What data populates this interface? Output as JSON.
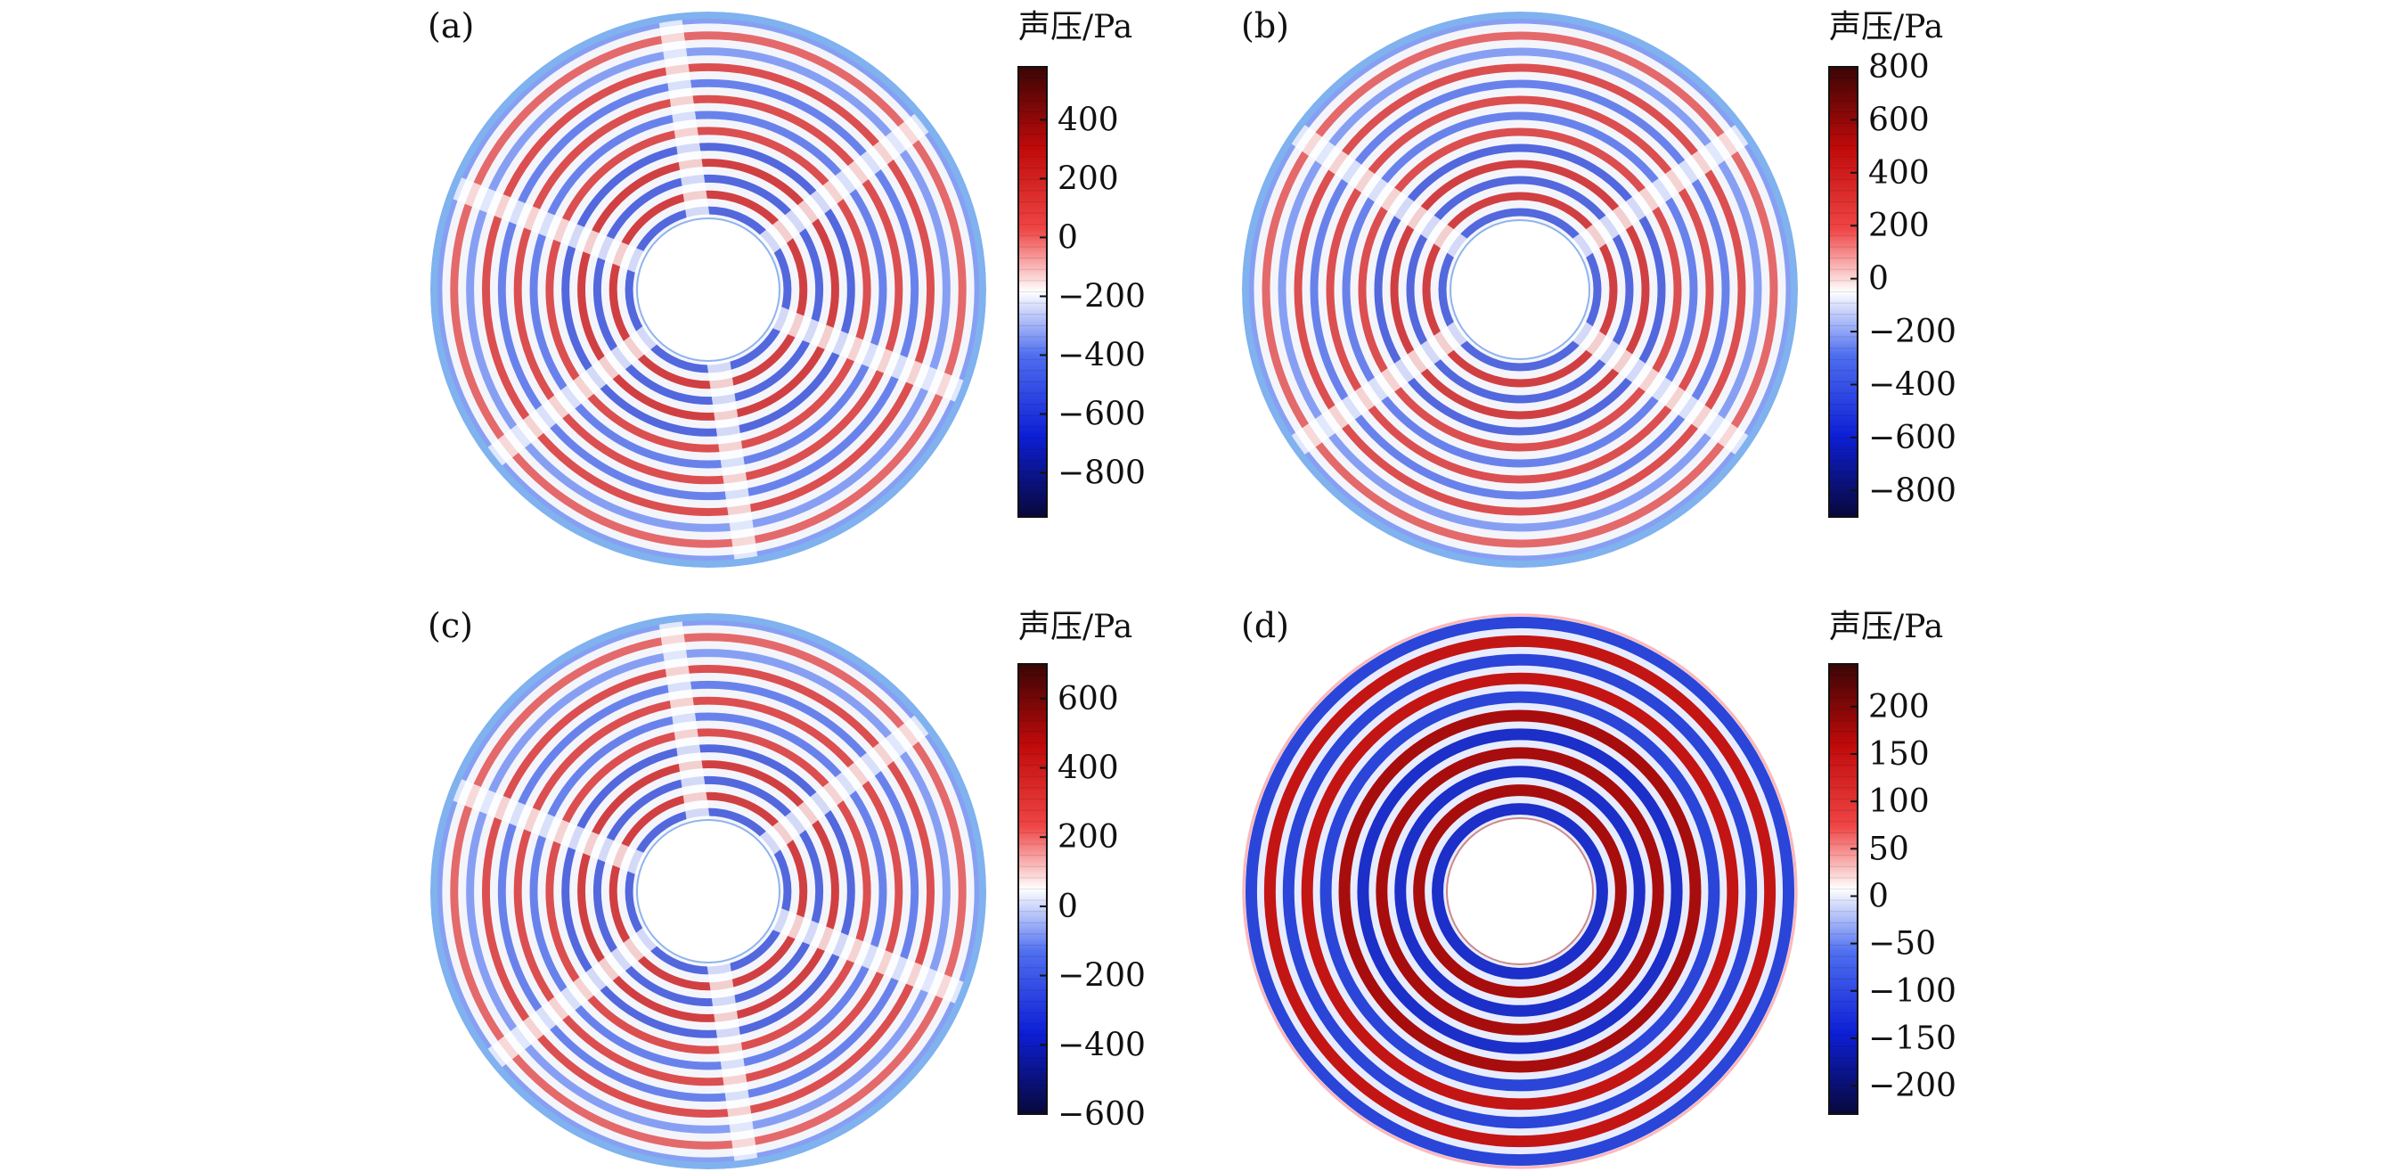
{
  "figure": {
    "panels": [
      {
        "label": "(a)",
        "colorbar_title": "声压/Pa",
        "pattern": "rings-with-six-nodal-lines",
        "ticks": [
          "400",
          "200",
          "0",
          "−200",
          "−400",
          "−600",
          "−800"
        ]
      },
      {
        "label": "(b)",
        "colorbar_title": "声压/Pa",
        "pattern": "rings-with-four-nodal-lines",
        "ticks": [
          "800",
          "600",
          "400",
          "200",
          "0",
          "−200",
          "−400",
          "−600",
          "−800"
        ]
      },
      {
        "label": "(c)",
        "colorbar_title": "声压/Pa",
        "pattern": "rings-with-six-nodal-lines",
        "ticks": [
          "600",
          "400",
          "200",
          "0",
          "−200",
          "−400",
          "−600"
        ]
      },
      {
        "label": "(d)",
        "colorbar_title": "声压/Pa",
        "pattern": "concentric-rings",
        "ticks": [
          "200",
          "150",
          "100",
          "50",
          "0",
          "−50",
          "−100",
          "−150",
          "−200"
        ]
      }
    ]
  },
  "chart_data": [
    {
      "type": "heatmap",
      "label": "(a)",
      "colorbar_label": "声压/Pa",
      "colorbar_range": [
        -950,
        580
      ],
      "colorbar_ticks": [
        400,
        200,
        0,
        -200,
        -400,
        -600,
        -800
      ],
      "colormap": [
        "#08083a",
        "#0d1fd6",
        "#4f6ff0",
        "#ffffff",
        "#f04545",
        "#c00a0a",
        "#3a0505"
      ]
    },
    {
      "type": "heatmap",
      "label": "(b)",
      "colorbar_label": "声压/Pa",
      "colorbar_range": [
        -900,
        800
      ],
      "colorbar_ticks": [
        800,
        600,
        400,
        200,
        0,
        -200,
        -400,
        -600,
        -800
      ],
      "colormap": [
        "#08083a",
        "#0d1fd6",
        "#4f6ff0",
        "#ffffff",
        "#f04545",
        "#c00a0a",
        "#3a0505"
      ]
    },
    {
      "type": "heatmap",
      "label": "(c)",
      "colorbar_label": "声压/Pa",
      "colorbar_range": [
        -600,
        700
      ],
      "colorbar_ticks": [
        600,
        400,
        200,
        0,
        -200,
        -400,
        -600
      ],
      "colormap": [
        "#08083a",
        "#0d1fd6",
        "#4f6ff0",
        "#ffffff",
        "#f04545",
        "#c00a0a",
        "#3a0505"
      ]
    },
    {
      "type": "heatmap",
      "label": "(d)",
      "colorbar_label": "声压/Pa",
      "colorbar_range": [
        -230,
        245
      ],
      "colorbar_ticks": [
        200,
        150,
        100,
        50,
        0,
        -50,
        -100,
        -150,
        -200
      ],
      "colormap": [
        "#08083a",
        "#0d1fd6",
        "#4f6ff0",
        "#ffffff",
        "#f04545",
        "#c00a0a",
        "#3a0505"
      ]
    }
  ]
}
